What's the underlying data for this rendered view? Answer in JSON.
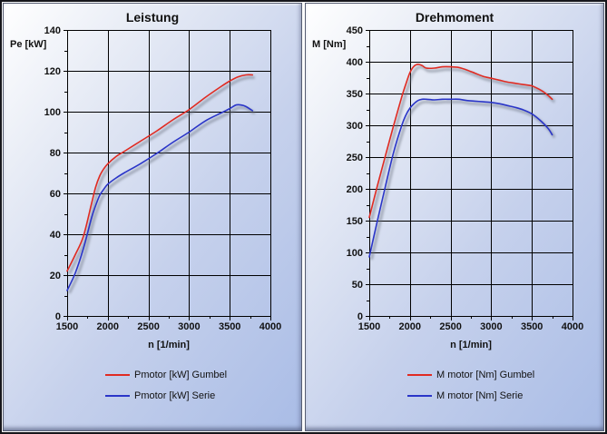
{
  "accent_colors": {
    "gumbel_red": "#e02b22",
    "serie_blue": "#2a35c8",
    "grid": "#000000",
    "panel_bottom_blue": "#aabce6"
  },
  "chart_data": [
    {
      "type": "line",
      "title": "Leistung",
      "xlabel": "n [1/min]",
      "ylabel": "Pe [kW]",
      "x_range": [
        1500,
        4000
      ],
      "y_range": [
        0,
        140
      ],
      "x_tick_step": 500,
      "x_minor_step": 250,
      "y_tick_step": 20,
      "y_minor_step": 10,
      "grid": true,
      "legend_position": "bottom",
      "series": [
        {
          "name": "Pmotor [kW] Gumbel",
          "color": "#e02b22",
          "points": [
            [
              1500,
              22
            ],
            [
              1600,
              30
            ],
            [
              1700,
              39
            ],
            [
              1800,
              55
            ],
            [
              1850,
              63
            ],
            [
              1900,
              68.5
            ],
            [
              1950,
              72
            ],
            [
              2000,
              74.5
            ],
            [
              2100,
              78
            ],
            [
              2200,
              80.5
            ],
            [
              2400,
              85.5
            ],
            [
              2600,
              90.5
            ],
            [
              2800,
              96
            ],
            [
              3000,
              101
            ],
            [
              3200,
              107
            ],
            [
              3400,
              112.5
            ],
            [
              3500,
              115
            ],
            [
              3600,
              117
            ],
            [
              3700,
              118
            ],
            [
              3780,
              118
            ]
          ]
        },
        {
          "name": "Pmotor [kW] Serie",
          "color": "#2a35c8",
          "points": [
            [
              1500,
              12.5
            ],
            [
              1600,
              21
            ],
            [
              1700,
              33
            ],
            [
              1800,
              48
            ],
            [
              1850,
              54
            ],
            [
              1900,
              59
            ],
            [
              1950,
              62
            ],
            [
              2000,
              64.5
            ],
            [
              2100,
              67.5
            ],
            [
              2200,
              70
            ],
            [
              2400,
              74.5
            ],
            [
              2600,
              79.5
            ],
            [
              2800,
              85
            ],
            [
              3000,
              90
            ],
            [
              3200,
              95.5
            ],
            [
              3400,
              99.5
            ],
            [
              3500,
              101.5
            ],
            [
              3580,
              103.3
            ],
            [
              3650,
              103.2
            ],
            [
              3700,
              102.5
            ],
            [
              3780,
              100.5
            ]
          ]
        }
      ]
    },
    {
      "type": "line",
      "title": "Drehmoment",
      "xlabel": "n [1/min]",
      "ylabel": "M [Nm]",
      "x_range": [
        1500,
        4000
      ],
      "y_range": [
        0,
        450
      ],
      "x_tick_step": 500,
      "x_minor_step": 250,
      "y_tick_step": 50,
      "y_minor_step": 25,
      "grid": true,
      "legend_position": "bottom",
      "series": [
        {
          "name": "M motor [Nm] Gumbel",
          "color": "#e02b22",
          "points": [
            [
              1500,
              155
            ],
            [
              1600,
              205
            ],
            [
              1700,
              253
            ],
            [
              1800,
              300
            ],
            [
              1900,
              345
            ],
            [
              1950,
              365
            ],
            [
              2000,
              383
            ],
            [
              2050,
              393
            ],
            [
              2100,
              396
            ],
            [
              2150,
              394
            ],
            [
              2200,
              390
            ],
            [
              2300,
              390
            ],
            [
              2400,
              392
            ],
            [
              2500,
              392
            ],
            [
              2600,
              391
            ],
            [
              2700,
              387
            ],
            [
              2800,
              382
            ],
            [
              2900,
              377
            ],
            [
              3000,
              374
            ],
            [
              3100,
              371
            ],
            [
              3200,
              368
            ],
            [
              3300,
              366
            ],
            [
              3400,
              364
            ],
            [
              3500,
              362
            ],
            [
              3600,
              356
            ],
            [
              3650,
              352
            ],
            [
              3700,
              347
            ],
            [
              3750,
              341
            ]
          ]
        },
        {
          "name": "M motor [Nm] Serie",
          "color": "#2a35c8",
          "points": [
            [
              1500,
              93
            ],
            [
              1600,
              150
            ],
            [
              1700,
              205
            ],
            [
              1800,
              258
            ],
            [
              1900,
              300
            ],
            [
              1950,
              316
            ],
            [
              2000,
              327
            ],
            [
              2050,
              334
            ],
            [
              2100,
              339
            ],
            [
              2150,
              341
            ],
            [
              2200,
              341
            ],
            [
              2300,
              340
            ],
            [
              2400,
              341
            ],
            [
              2500,
              341
            ],
            [
              2600,
              341
            ],
            [
              2700,
              339
            ],
            [
              2800,
              338
            ],
            [
              2900,
              337
            ],
            [
              3000,
              336
            ],
            [
              3100,
              334
            ],
            [
              3200,
              331
            ],
            [
              3300,
              328
            ],
            [
              3400,
              324
            ],
            [
              3500,
              318
            ],
            [
              3600,
              308
            ],
            [
              3700,
              295
            ],
            [
              3750,
              285
            ]
          ]
        }
      ]
    }
  ]
}
